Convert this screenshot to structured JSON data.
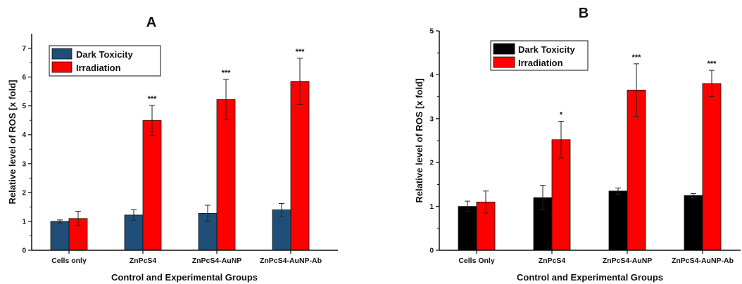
{
  "chart_data": [
    {
      "type": "bar",
      "title": "A",
      "xlabel": "Control and Experimental Groups",
      "ylabel": "Relative level of ROS [x fold]",
      "ylim": [
        0,
        7.5
      ],
      "yticks": [
        0,
        1,
        2,
        3,
        4,
        5,
        6,
        7
      ],
      "categories": [
        "Cells only",
        "ZnPcS4",
        "ZnPcS4-AuNP",
        "ZnPcS4-AuNP-Ab"
      ],
      "series": [
        {
          "name": "Dark Toxicity",
          "color": "#1f4e79",
          "values": [
            1.0,
            1.22,
            1.28,
            1.4
          ],
          "errors": [
            0.05,
            0.18,
            0.28,
            0.22
          ]
        },
        {
          "name": "Irradiation",
          "color": "#ff0000",
          "values": [
            1.1,
            4.5,
            5.22,
            5.85
          ],
          "errors": [
            0.25,
            0.52,
            0.7,
            0.8
          ]
        }
      ],
      "significance": [
        "",
        "***",
        "***",
        "***"
      ],
      "legend": "top-left",
      "grid": false
    },
    {
      "type": "bar",
      "title": "B",
      "xlabel": "Control and Experimental Groups",
      "ylabel": "Relative level of ROS [x fold]",
      "ylim": [
        0,
        5
      ],
      "yticks": [
        0,
        1,
        2,
        3,
        4,
        5
      ],
      "categories": [
        "Cells Only",
        "ZnPcS4",
        "ZnPcS4-AuNP",
        "ZnPcS4-AuNP-Ab"
      ],
      "series": [
        {
          "name": "Dark Toxicity",
          "color": "#000000",
          "values": [
            1.0,
            1.2,
            1.35,
            1.25
          ],
          "errors": [
            0.12,
            0.28,
            0.07,
            0.04
          ]
        },
        {
          "name": "Irradiation",
          "color": "#ff0000",
          "values": [
            1.1,
            2.52,
            3.65,
            3.8
          ],
          "errors": [
            0.25,
            0.42,
            0.6,
            0.3
          ]
        }
      ],
      "significance": [
        "",
        "*",
        "***",
        "***"
      ],
      "legend": "top-left",
      "grid": false
    }
  ]
}
